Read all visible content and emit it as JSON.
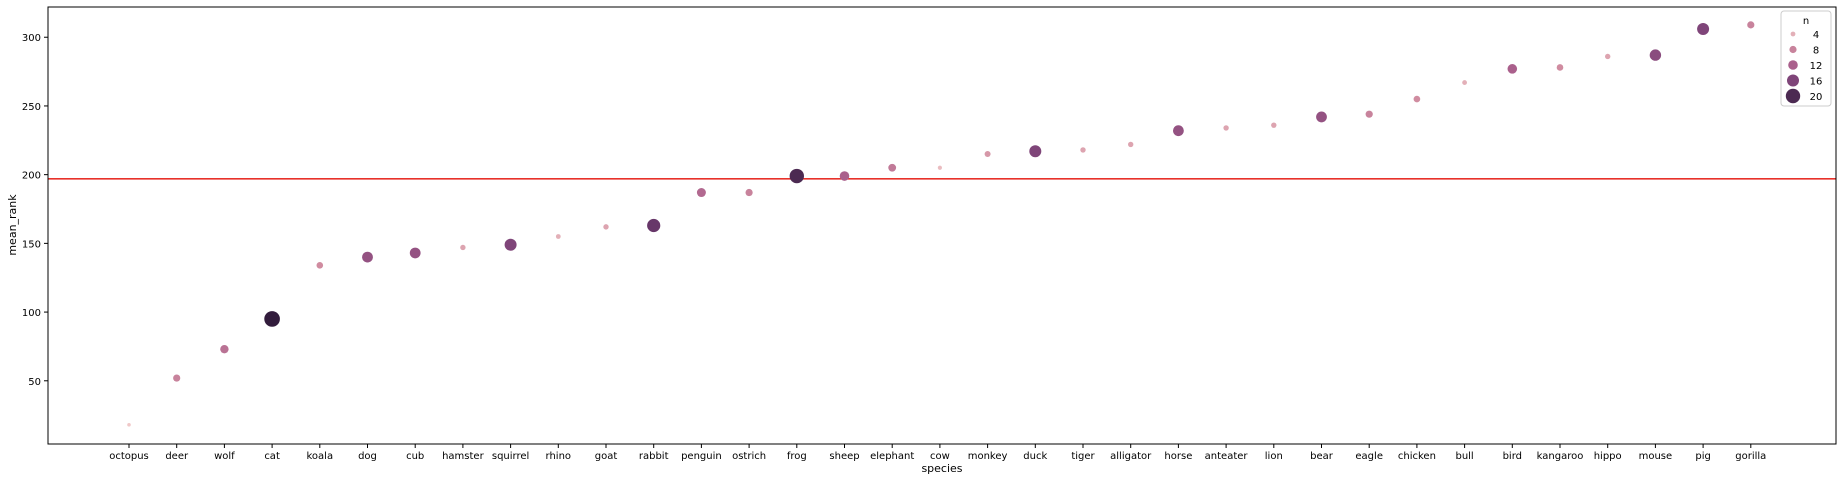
{
  "chart_data": {
    "type": "scatter",
    "xlabel": "species",
    "ylabel": "mean_rank",
    "ylim": [
      4,
      322
    ],
    "yticks": [
      50,
      100,
      150,
      200,
      250,
      300
    ],
    "reference_line": {
      "y": 197,
      "color": "#e8322a"
    },
    "legend": {
      "title": "n",
      "position": "top-right",
      "entries": [
        {
          "label": "4",
          "n": 4
        },
        {
          "label": "8",
          "n": 8
        },
        {
          "label": "12",
          "n": 12
        },
        {
          "label": "16",
          "n": 16
        },
        {
          "label": "20",
          "n": 20
        }
      ]
    },
    "points": [
      {
        "species": "octopus",
        "mean_rank": 18,
        "n": 2
      },
      {
        "species": "deer",
        "mean_rank": 52,
        "n": 8
      },
      {
        "species": "wolf",
        "mean_rank": 73,
        "n": 10
      },
      {
        "species": "cat",
        "mean_rank": 95,
        "n": 22
      },
      {
        "species": "koala",
        "mean_rank": 134,
        "n": 7
      },
      {
        "species": "dog",
        "mean_rank": 140,
        "n": 14
      },
      {
        "species": "cub",
        "mean_rank": 143,
        "n": 14
      },
      {
        "species": "hamster",
        "mean_rank": 147,
        "n": 5
      },
      {
        "species": "squirrel",
        "mean_rank": 149,
        "n": 16
      },
      {
        "species": "rhino",
        "mean_rank": 155,
        "n": 4
      },
      {
        "species": "goat",
        "mean_rank": 162,
        "n": 5
      },
      {
        "species": "rabbit",
        "mean_rank": 163,
        "n": 18
      },
      {
        "species": "penguin",
        "mean_rank": 187,
        "n": 11
      },
      {
        "species": "ostrich",
        "mean_rank": 187,
        "n": 8
      },
      {
        "species": "frog",
        "mean_rank": 199,
        "n": 20
      },
      {
        "species": "sheep",
        "mean_rank": 199,
        "n": 12
      },
      {
        "species": "elephant",
        "mean_rank": 205,
        "n": 9
      },
      {
        "species": "cow",
        "mean_rank": 205,
        "n": 3
      },
      {
        "species": "monkey",
        "mean_rank": 215,
        "n": 6
      },
      {
        "species": "duck",
        "mean_rank": 217,
        "n": 16
      },
      {
        "species": "tiger",
        "mean_rank": 218,
        "n": 5
      },
      {
        "species": "alligator",
        "mean_rank": 222,
        "n": 5
      },
      {
        "species": "horse",
        "mean_rank": 232,
        "n": 14
      },
      {
        "species": "anteater",
        "mean_rank": 234,
        "n": 5
      },
      {
        "species": "lion",
        "mean_rank": 236,
        "n": 5
      },
      {
        "species": "bear",
        "mean_rank": 242,
        "n": 14
      },
      {
        "species": "eagle",
        "mean_rank": 244,
        "n": 8
      },
      {
        "species": "chicken",
        "mean_rank": 255,
        "n": 7
      },
      {
        "species": "bull",
        "mean_rank": 267,
        "n": 4
      },
      {
        "species": "bird",
        "mean_rank": 277,
        "n": 12
      },
      {
        "species": "kangaroo",
        "mean_rank": 278,
        "n": 7
      },
      {
        "species": "hippo",
        "mean_rank": 286,
        "n": 5
      },
      {
        "species": "mouse",
        "mean_rank": 287,
        "n": 15
      },
      {
        "species": "pig",
        "mean_rank": 306,
        "n": 16
      },
      {
        "species": "gorilla",
        "mean_rank": 309,
        "n": 8
      }
    ]
  }
}
